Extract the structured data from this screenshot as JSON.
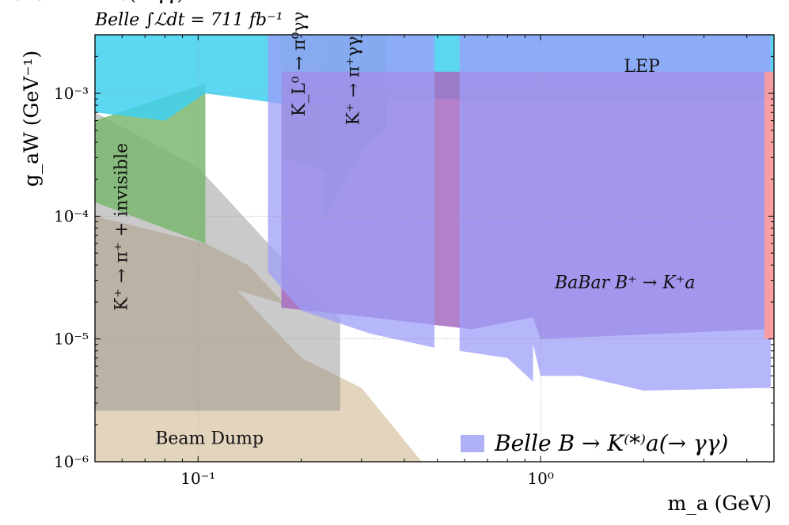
{
  "chart_data": {
    "type": "area",
    "title": "Belle ∫ℒdt = 711 fb⁻¹",
    "xlabel": "m_a (GeV)",
    "ylabel": "g_aW (GeV⁻¹)",
    "x_scale": "log",
    "y_scale": "log",
    "xlim": [
      0.05,
      4.8
    ],
    "ylim": [
      1e-06,
      0.003
    ],
    "x_ticks": [
      {
        "v": 0.1,
        "label": "10⁻¹"
      },
      {
        "v": 1,
        "label": "10⁰"
      }
    ],
    "y_ticks": [
      {
        "v": 1e-06,
        "label": "10⁻⁶"
      },
      {
        "v": 1e-05,
        "label": "10⁻⁵"
      },
      {
        "v": 0.0001,
        "label": "10⁻⁴"
      },
      {
        "v": 0.001,
        "label": "10⁻³"
      }
    ],
    "grid": true,
    "legend": {
      "position": "bottom-right",
      "entries": [
        {
          "label": "Belle B → K⁽*⁾a(→ γγ)",
          "color": "#b0b0f7"
        }
      ]
    },
    "regions": [
      {
        "name": "Beam Dump",
        "label": "Beam Dump",
        "color": "#e3d4be",
        "label_at": [
          0.075,
          1.4e-06
        ],
        "rotate": 0,
        "points": [
          [
            0.05,
            1e-06
          ],
          [
            0.05,
            0.0001
          ],
          [
            0.105,
            6e-05
          ],
          [
            0.14,
            4e-05
          ],
          [
            0.18,
            1.9e-05
          ],
          [
            0.13,
            2.5e-05
          ],
          [
            0.2,
            7e-06
          ],
          [
            0.3,
            4e-06
          ],
          [
            0.45,
            1e-06
          ]
        ]
      },
      {
        "name": "E949 kaon",
        "label": "K⁺ → π⁺ + invisible",
        "color": "#8a8a8a",
        "opacity": 0.45,
        "label_at": [
          0.062,
          1.7e-05
        ],
        "rotate": -90,
        "points": [
          [
            0.05,
            0.0007
          ],
          [
            0.1,
            0.00025
          ],
          [
            0.165,
            5.5e-05
          ],
          [
            0.26,
            1.5e-05
          ],
          [
            0.26,
            2.6e-06
          ],
          [
            0.05,
            2.6e-06
          ]
        ]
      },
      {
        "name": "Kaon green band",
        "label": "",
        "color": "#7bb870",
        "opacity": 0.85,
        "label_at": [
          0,
          0
        ],
        "rotate": 0,
        "points": [
          [
            0.05,
            0.0006
          ],
          [
            0.105,
            0.0012
          ],
          [
            0.105,
            6e-05
          ],
          [
            0.05,
            0.00013
          ]
        ]
      },
      {
        "name": "KL to pi0 gamma gamma",
        "label": "K_L⁰ → π⁰γγ",
        "color": "#44c24a",
        "opacity": 0.9,
        "label_at": [
          0.205,
          0.00065
        ],
        "rotate": -90,
        "points": [
          [
            0.175,
            0.003
          ],
          [
            0.355,
            0.003
          ],
          [
            0.355,
            0.0005
          ],
          [
            0.24,
            0.00023
          ],
          [
            0.175,
            0.0003
          ]
        ]
      },
      {
        "name": "K+ to pi+ gamma gamma",
        "label": "K⁺ → π⁺γγ",
        "color": "#2db84a",
        "opacity": 0.9,
        "label_at": [
          0.295,
          0.00055
        ],
        "rotate": -90,
        "points": [
          [
            0.235,
            0.003
          ],
          [
            0.355,
            0.003
          ],
          [
            0.355,
            0.00055
          ],
          [
            0.3,
            0.00033
          ],
          [
            0.235,
            0.0001
          ]
        ]
      },
      {
        "name": "LEP",
        "label": "LEP",
        "color": "#3fd0f0",
        "opacity": 0.85,
        "label_at": [
          1.75,
          0.0015
        ],
        "rotate": 0,
        "points": [
          [
            0.05,
            0.003
          ],
          [
            4.8,
            0.003
          ],
          [
            4.8,
            0.0009
          ],
          [
            0.33,
            0.0009
          ],
          [
            0.19,
            0.0008
          ],
          [
            0.105,
            0.001
          ],
          [
            0.08,
            0.0006
          ],
          [
            0.05,
            0.0007
          ]
        ]
      },
      {
        "name": "BaBar",
        "label": "BaBar B⁺ → K⁺a",
        "color": "#a66bbf",
        "opacity": 0.85,
        "label_at": [
          1.1,
          2.6e-05
        ],
        "rotate": 0,
        "points": [
          [
            0.175,
            0.0015
          ],
          [
            4.5,
            0.0015
          ],
          [
            4.5,
            1.2e-05
          ],
          [
            1.0,
            1e-05
          ],
          [
            0.95,
            1.5e-05
          ],
          [
            0.63,
            1.2e-05
          ],
          [
            0.49,
            1.3e-05
          ],
          [
            0.32,
            1.5e-05
          ],
          [
            0.175,
            1.8e-05
          ]
        ]
      },
      {
        "name": "Belle",
        "label": "Belle B → K⁽*⁾a(→ γγ)",
        "color": "#9e9ef8",
        "opacity": 0.75,
        "label_at": [
          0,
          0
        ],
        "rotate": 0,
        "points": [
          [
            0.16,
            0.003
          ],
          [
            0.49,
            0.003
          ],
          [
            0.49,
            8.5e-06
          ],
          [
            0.32,
            1.1e-05
          ],
          [
            0.2,
            1.7e-05
          ],
          [
            0.16,
            3.5e-05
          ]
        ]
      },
      {
        "name": "Belle high mass",
        "label": "",
        "color": "#9e9ef8",
        "opacity": 0.75,
        "label_at": [
          0,
          0
        ],
        "rotate": 0,
        "points": [
          [
            0.58,
            0.003
          ],
          [
            0.95,
            0.003
          ],
          [
            0.95,
            4.5e-06
          ],
          [
            0.8,
            7e-06
          ],
          [
            0.58,
            8e-06
          ],
          [
            0.58,
            0.003
          ],
          [
            1.0,
            0.003
          ],
          [
            4.7,
            0.003
          ],
          [
            4.7,
            4e-06
          ],
          [
            2.0,
            3.8e-06
          ],
          [
            1.3,
            5e-06
          ],
          [
            1.0,
            5e-06
          ]
        ]
      },
      {
        "name": "red edge",
        "label": "",
        "color": "#ff9a9a",
        "opacity": 0.9,
        "label_at": [
          0,
          0
        ],
        "rotate": 0,
        "points": [
          [
            4.5,
            0.0015
          ],
          [
            4.8,
            0.0015
          ],
          [
            4.8,
            1e-05
          ],
          [
            4.5,
            1e-05
          ]
        ]
      }
    ]
  }
}
